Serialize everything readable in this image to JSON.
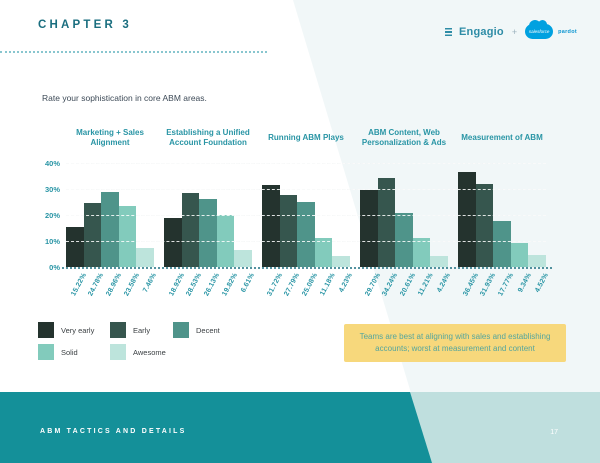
{
  "header": {
    "chapter": "CHAPTER 3",
    "logo": {
      "engagio": "Engagio",
      "plus": "+",
      "salesforce": "salesforce",
      "pardot": "pardot"
    }
  },
  "chart_data": {
    "type": "bar",
    "title": "Rate your sophistication in core ABM areas.",
    "xlabel": "",
    "ylabel": "",
    "ylim": [
      0,
      40
    ],
    "yticks": [
      40,
      30,
      20,
      10,
      0
    ],
    "ytick_labels": [
      "40%",
      "30%",
      "20%",
      "10%",
      "0%"
    ],
    "grid": "dashed horizontal",
    "legend_position": "bottom-left",
    "categories": [
      "Marketing + Sales Alignment",
      "Establishing a Unified Account Foundation",
      "Running ABM Plays",
      "ABM Content, Web Personalization & Ads",
      "Measurement of ABM"
    ],
    "series": [
      {
        "name": "Very early",
        "color": "#24332e",
        "values": [
          15.22,
          18.92,
          31.72,
          29.7,
          36.45
        ]
      },
      {
        "name": "Early",
        "color": "#36564e",
        "values": [
          24.78,
          28.53,
          27.79,
          34.24,
          31.93
        ]
      },
      {
        "name": "Decent",
        "color": "#4f948a",
        "values": [
          28.96,
          26.13,
          25.08,
          20.61,
          17.77
        ]
      },
      {
        "name": "Solid",
        "color": "#82cbbc",
        "values": [
          23.58,
          19.82,
          11.18,
          11.21,
          9.34
        ]
      },
      {
        "name": "Awesome",
        "color": "#bde4dc",
        "values": [
          7.46,
          6.61,
          4.23,
          4.24,
          4.52
        ]
      }
    ],
    "value_label_format": "0.00%"
  },
  "callout": {
    "text": "Teams are best at aligning with sales and establishing accounts; worst at measurement and content",
    "background": "#f7d87c",
    "text_color": "#54a59d"
  },
  "footer": {
    "label": "ABM TACTICS AND DETAILS",
    "page_number": "17",
    "background": "#149099",
    "accent": "#bfdfde"
  },
  "colors": {
    "brand_teal": "#2995a5",
    "chapter_teal": "#1a6e7f",
    "diagonal_tint": "#f1f7f8",
    "salesforce_blue": "#00a1e0"
  }
}
